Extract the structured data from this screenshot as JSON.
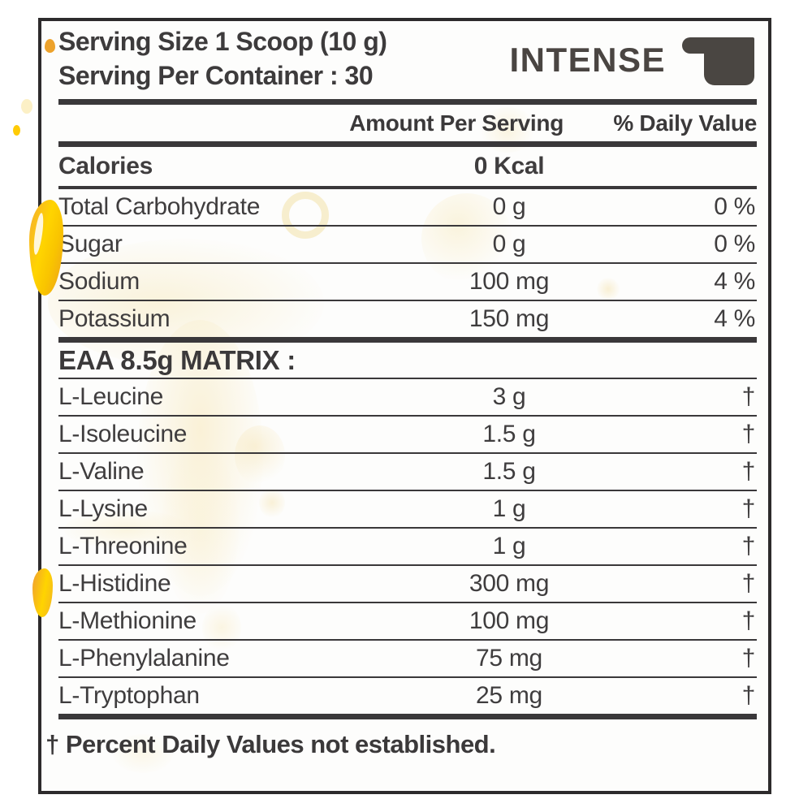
{
  "header": {
    "serving_size": "Serving Size 1 Scoop (10 g)",
    "serving_per_container": "Serving Per Container : 30",
    "brand": "INTENSE"
  },
  "table": {
    "col_amount": "Amount Per Serving",
    "col_dv": "% Daily Value",
    "calories": {
      "label": "Calories",
      "amount": "0 Kcal",
      "dv": ""
    },
    "nutrients": [
      {
        "label": "Total Carbohydrate",
        "amount": "0 g",
        "dv": "0 %"
      },
      {
        "label": "Sugar",
        "amount": "0 g",
        "dv": "0 %"
      },
      {
        "label": "Sodium",
        "amount": "100 mg",
        "dv": "4 %"
      },
      {
        "label": "Potassium",
        "amount": "150 mg",
        "dv": "4 %"
      }
    ],
    "matrix_header": "EAA 8.5g MATRIX :",
    "aminos": [
      {
        "label": "L-Leucine",
        "amount": "3 g",
        "dv": "†"
      },
      {
        "label": "L-Isoleucine",
        "amount": "1.5 g",
        "dv": "†"
      },
      {
        "label": "L-Valine",
        "amount": "1.5 g",
        "dv": "†"
      },
      {
        "label": "L-Lysine",
        "amount": "1 g",
        "dv": "†"
      },
      {
        "label": "L-Threonine",
        "amount": "1 g",
        "dv": "†"
      },
      {
        "label": "L-Histidine",
        "amount": "300 mg",
        "dv": "†"
      },
      {
        "label": "L-Methionine",
        "amount": "100 mg",
        "dv": "†"
      },
      {
        "label": "L-Phenylalanine",
        "amount": "75 mg",
        "dv": "†"
      },
      {
        "label": "L-Tryptophan",
        "amount": "25 mg",
        "dv": "†"
      }
    ]
  },
  "footer": {
    "note": "† Percent Daily Values not established."
  },
  "colors": {
    "text": "#3d3b3c",
    "brand": "#4a4542",
    "border": "#2d2b2c",
    "accent_yellow": "#ffd400",
    "accent_orange": "#eda01c",
    "pale_splash": "#f7ecc8"
  }
}
